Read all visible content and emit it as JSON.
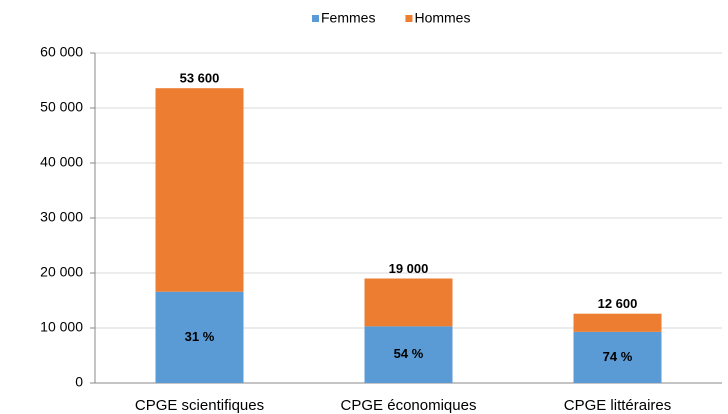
{
  "chart_data": {
    "type": "stacked-bar",
    "categories": [
      "CPGE scientifiques",
      "CPGE économiques",
      "CPGE littéraires"
    ],
    "series": [
      {
        "name": "Femmes",
        "color": "#5b9bd5",
        "values": [
          16600,
          10300,
          9300
        ],
        "percentages": [
          31,
          54,
          74
        ],
        "percentage_labels": [
          "31 %",
          "54 %",
          "74 %"
        ]
      },
      {
        "name": "Hommes",
        "color": "#ed7d31",
        "values": [
          37000,
          8700,
          3300
        ]
      }
    ],
    "totals": [
      53600,
      19000,
      12600
    ],
    "total_labels": [
      "53 600",
      "19 000",
      "12 600"
    ],
    "ylim": [
      0,
      60000
    ],
    "yticks": [
      0,
      {
        "value": 10000,
        "label": "10 000"
      },
      {
        "value": 20000,
        "label": "20 000"
      },
      {
        "value": 30000,
        "label": "30 000"
      },
      {
        "value": 40000,
        "label": "40 000"
      },
      {
        "value": 50000,
        "label": "50 000"
      },
      {
        "value": 60000,
        "label": "60 000"
      }
    ],
    "grid": true,
    "legend": "top"
  }
}
